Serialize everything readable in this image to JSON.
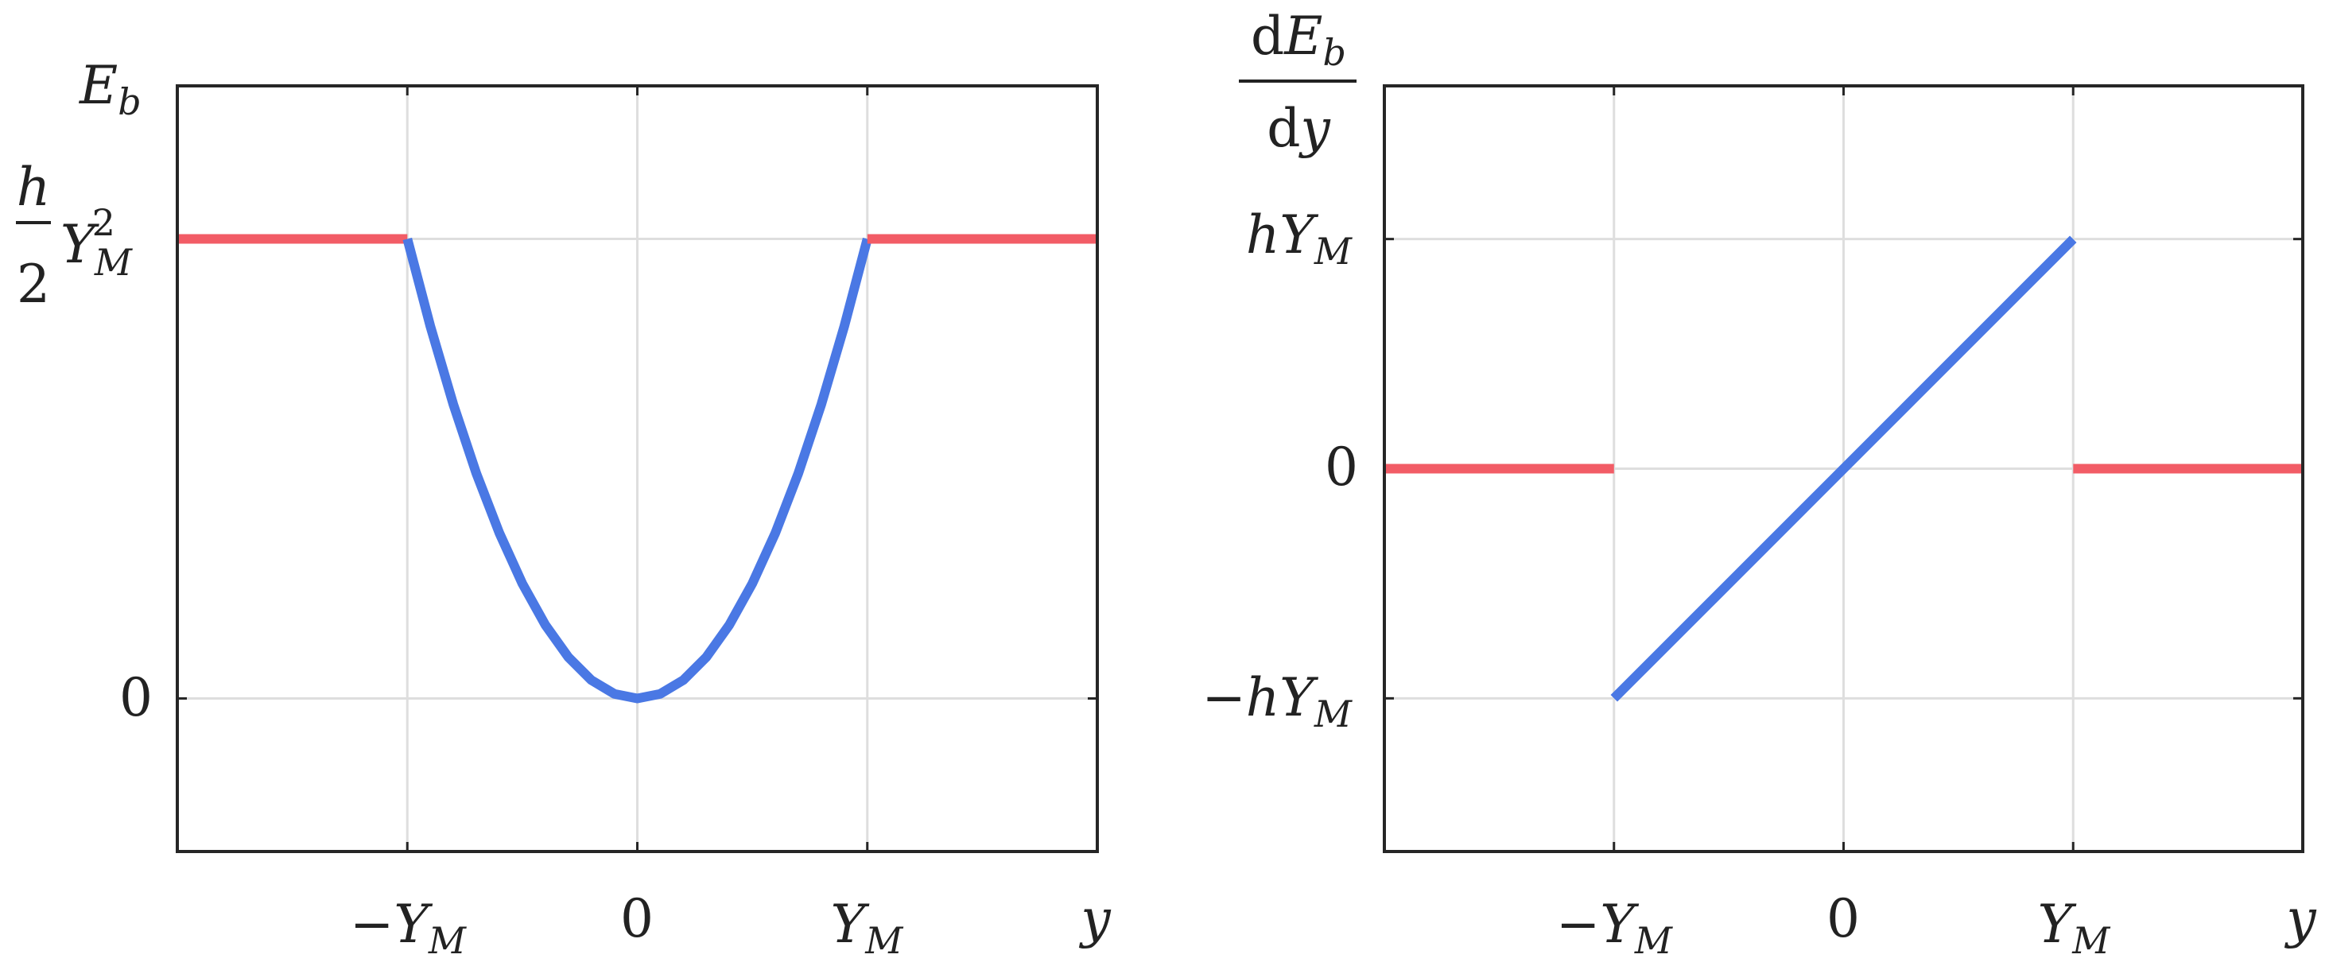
{
  "colors": {
    "flat_segment": "#f25c66",
    "curve_segment": "#4a78e4",
    "grid": "#dedede",
    "axes": "#262626",
    "text": "#222222"
  },
  "chart_data": [
    {
      "type": "line",
      "title": "",
      "ylabel": {
        "main": "E",
        "sub": "b"
      },
      "xlabel": "y",
      "xlim": [
        -2,
        2
      ],
      "ylim": [
        -0.333,
        1.333
      ],
      "grid": true,
      "xticks": [
        {
          "value": -1,
          "prefix": "−",
          "main": "Y",
          "sub": "M"
        },
        {
          "value": 0,
          "prefix": "",
          "main": "0",
          "sub": ""
        },
        {
          "value": 1,
          "prefix": "",
          "main": "Y",
          "sub": "M"
        }
      ],
      "yticks": [
        {
          "value": 0,
          "text": "0"
        },
        {
          "value": 1,
          "frac_num": "h",
          "frac_den": "2",
          "main": "Y",
          "sub": "M",
          "sup": "2"
        }
      ],
      "series": [
        {
          "role": "flat_segment",
          "x": [
            -2,
            -1
          ],
          "y": [
            1,
            1
          ]
        },
        {
          "role": "curve_segment",
          "x": [
            -1,
            -0.9,
            -0.8,
            -0.7,
            -0.6,
            -0.5,
            -0.4,
            -0.3,
            -0.2,
            -0.1,
            0,
            0.1,
            0.2,
            0.3,
            0.4,
            0.5,
            0.6,
            0.7,
            0.8,
            0.9,
            1
          ],
          "y": [
            1,
            0.81,
            0.64,
            0.49,
            0.36,
            0.25,
            0.16,
            0.09,
            0.04,
            0.01,
            0,
            0.01,
            0.04,
            0.09,
            0.16,
            0.25,
            0.36,
            0.49,
            0.64,
            0.81,
            1
          ]
        },
        {
          "role": "flat_segment",
          "x": [
            1,
            2
          ],
          "y": [
            1,
            1
          ]
        }
      ]
    },
    {
      "type": "line",
      "title": "",
      "ylabel": {
        "num_prefix": "d",
        "num_main": "E",
        "num_sub": "b",
        "den_prefix": "d",
        "den_main": "y"
      },
      "xlabel": "y",
      "xlim": [
        -2,
        2
      ],
      "ylim": [
        -1.667,
        1.667
      ],
      "grid": true,
      "xticks": [
        {
          "value": -1,
          "prefix": "−",
          "main": "Y",
          "sub": "M"
        },
        {
          "value": 0,
          "prefix": "",
          "main": "0",
          "sub": ""
        },
        {
          "value": 1,
          "prefix": "",
          "main": "Y",
          "sub": "M"
        }
      ],
      "yticks": [
        {
          "value": -1,
          "text": "−hY",
          "sub": "M"
        },
        {
          "value": 0,
          "text": "0",
          "sub": ""
        },
        {
          "value": 1,
          "text": "hY",
          "sub": "M"
        }
      ],
      "series": [
        {
          "role": "flat_segment",
          "x": [
            -2,
            -1
          ],
          "y": [
            0,
            0
          ]
        },
        {
          "role": "curve_segment",
          "x": [
            -1,
            1
          ],
          "y": [
            -1,
            1
          ]
        },
        {
          "role": "flat_segment",
          "x": [
            1,
            2
          ],
          "y": [
            0,
            0
          ]
        }
      ]
    }
  ]
}
